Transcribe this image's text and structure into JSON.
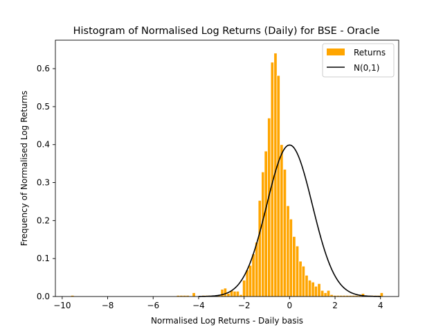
{
  "chart_data": {
    "type": "bar",
    "title": "Histogram of Normalised Log Returns (Daily) for BSE - Oracle",
    "xlabel": "Normalised Log Returns - Daily basis",
    "ylabel": "Frequency of Normalised Log Returns",
    "xlim": [
      -10.3,
      4.8
    ],
    "ylim": [
      0,
      0.675
    ],
    "xticks": [
      -10,
      -8,
      -6,
      -4,
      -2,
      0,
      2,
      4
    ],
    "xtick_labels": [
      "−10",
      "−8",
      "−6",
      "−4",
      "−2",
      "0",
      "2",
      "4"
    ],
    "yticks": [
      0.0,
      0.1,
      0.2,
      0.3,
      0.4,
      0.5,
      0.6
    ],
    "ytick_labels": [
      "0.0",
      "0.1",
      "0.2",
      "0.3",
      "0.4",
      "0.5",
      "0.6"
    ],
    "grid": false,
    "legend": {
      "position": "top-right",
      "entries": [
        "Returns",
        "N(0,1)"
      ]
    },
    "series": [
      {
        "name": "Returns",
        "kind": "histogram",
        "color": "#FFA500",
        "edgecolor": "#ffffff",
        "bin_width": 0.138,
        "bins_x": [
          -9.55,
          -4.9,
          -4.76,
          -4.62,
          -4.48,
          -4.21,
          -3.79,
          -3.65,
          -3.51,
          -3.38,
          -3.24,
          -3.1,
          -2.96,
          -2.83,
          -2.69,
          -2.55,
          -2.41,
          -2.28,
          -2.14,
          -2.0,
          -1.86,
          -1.73,
          -1.59,
          -1.45,
          -1.31,
          -1.17,
          -1.04,
          -0.9,
          -0.76,
          -0.62,
          -0.49,
          -0.35,
          -0.21,
          -0.07,
          0.06,
          0.2,
          0.34,
          0.48,
          0.61,
          0.75,
          0.89,
          1.03,
          1.16,
          1.3,
          1.44,
          1.58,
          1.71,
          1.85,
          1.99,
          2.13,
          2.26,
          2.4,
          2.54,
          2.68,
          2.81,
          2.95,
          3.09,
          3.23,
          3.36,
          3.5,
          3.64,
          3.78,
          3.91,
          4.05
        ],
        "values": [
          0.003,
          0.003,
          0.003,
          0.003,
          0.003,
          0.01,
          0.003,
          0.003,
          0.003,
          0.003,
          0.003,
          0.003,
          0.019,
          0.022,
          0.008,
          0.016,
          0.014,
          0.014,
          0.005,
          0.043,
          0.07,
          0.082,
          0.112,
          0.143,
          0.253,
          0.328,
          0.383,
          0.47,
          0.617,
          0.641,
          0.582,
          0.4,
          0.335,
          0.239,
          0.204,
          0.158,
          0.133,
          0.093,
          0.08,
          0.056,
          0.043,
          0.038,
          0.027,
          0.034,
          0.016,
          0.01,
          0.016,
          0.005,
          0.003,
          0.003,
          0.003,
          0.003,
          0.003,
          0.003,
          0.003,
          0.003,
          0.003,
          0.008,
          0.003,
          0.003,
          0.003,
          0.003,
          0.003,
          0.01
        ]
      },
      {
        "name": "N(0,1)",
        "kind": "line",
        "color": "#000000",
        "function": "standard_normal_pdf"
      }
    ]
  }
}
